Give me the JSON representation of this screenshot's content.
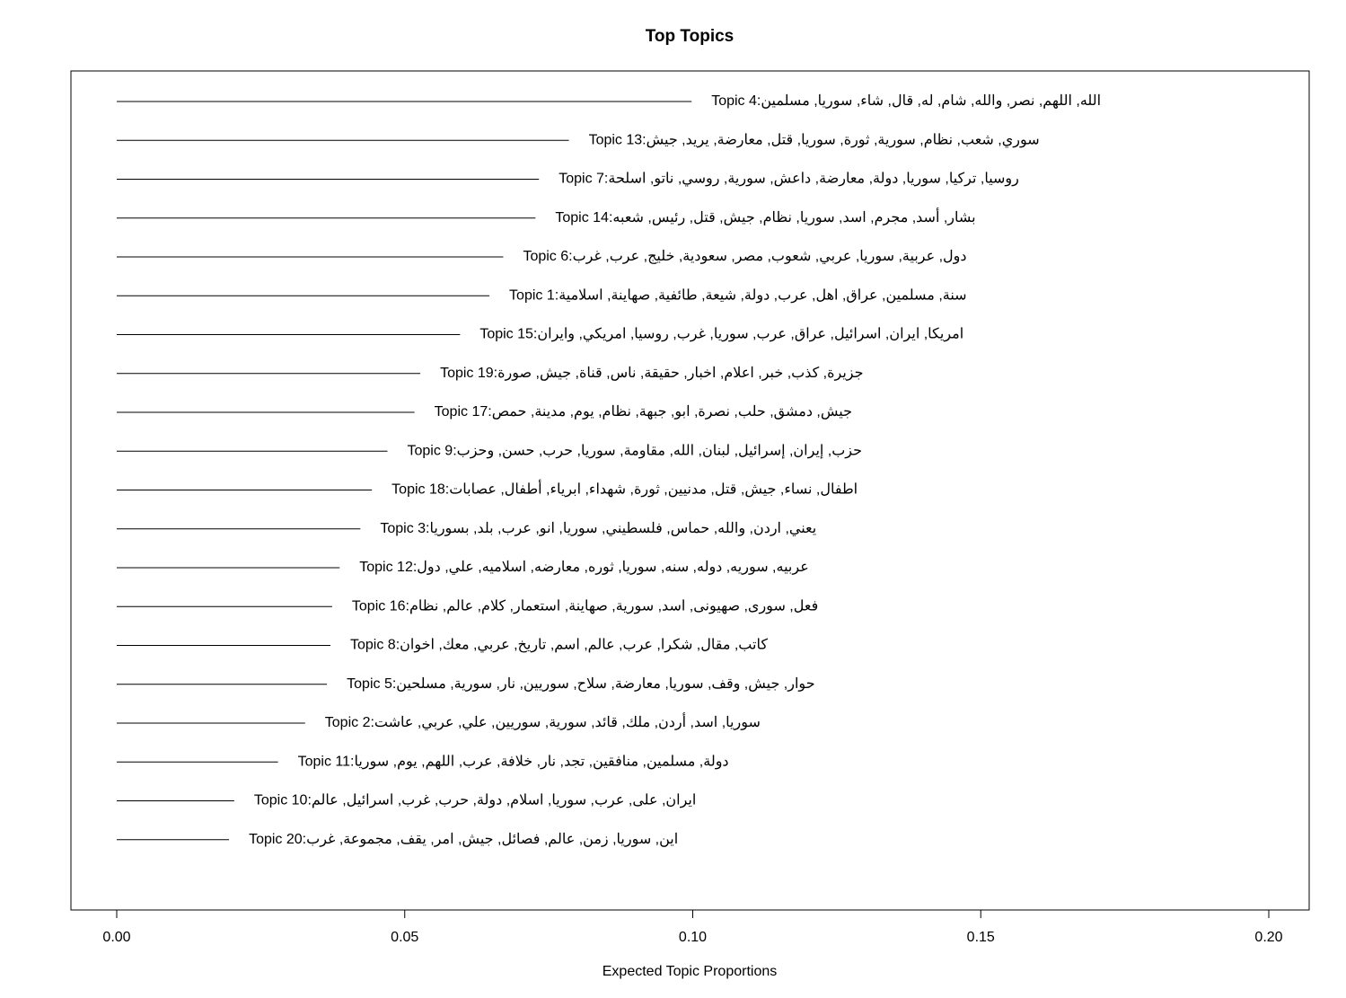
{
  "chart_data": {
    "type": "bar",
    "orientation": "horizontal",
    "title": "Top Topics",
    "xlabel": "Expected Topic Proportions",
    "ylabel": "",
    "xlim": [
      0,
      0.2
    ],
    "x_ticks": [
      "0.00",
      "0.05",
      "0.10",
      "0.15",
      "0.20"
    ],
    "grid": false,
    "bar_color": "#000000",
    "items": [
      {
        "topic": "Topic 4",
        "terms": "الله, اللهم, نصر, والله, شام, له, قال, شاء, سوريا, مسلمين",
        "value": 0.0998
      },
      {
        "topic": "Topic 13",
        "terms": "سوري, شعب, نظام, سورية, ثورة, سوريا, قتل, معارضة, يريد, جيش",
        "value": 0.0785
      },
      {
        "topic": "Topic 7",
        "terms": "روسيا, تركيا, سوريا, دولة, معارضة, داعش, سورية, روسي, ناتو, اسلحة",
        "value": 0.0733
      },
      {
        "topic": "Topic 14",
        "terms": "بشار, أسد, مجرم, اسد, سوريا, نظام, جيش, قتل, رئيس, شعبه",
        "value": 0.0727
      },
      {
        "topic": "Topic 6",
        "terms": "دول, عربية, سوريا, عربي, شعوب, مصر, سعودية, خليج, عرب, غرب",
        "value": 0.0671
      },
      {
        "topic": "Topic 1",
        "terms": "سنة, مسلمين, عراق, اهل, عرب, دولة, شيعة, طائفية, صهاينة, اسلامية",
        "value": 0.0647
      },
      {
        "topic": "Topic 15",
        "terms": "امريكا, ايران, اسرائيل, عراق, عرب, سوريا, غرب, روسيا, امريكي, وايران",
        "value": 0.0596
      },
      {
        "topic": "Topic 19",
        "terms": "جزيرة, كذب, خبر, اعلام, اخبار, حقيقة, ناس, قناة, جيش, صورة",
        "value": 0.0527
      },
      {
        "topic": "Topic 17",
        "terms": "جيش, دمشق, حلب, نصرة, ابو, جبهة, نظام, يوم, مدينة, حمص",
        "value": 0.0517
      },
      {
        "topic": "Topic 9",
        "terms": "حزب, إيران, إسرائيل, لبنان, الله, مقاومة, سوريا, حرب, حسن, وحزب",
        "value": 0.047
      },
      {
        "topic": "Topic 18",
        "terms": "اطفال, نساء, جيش, قتل, مدنيين, ثورة, شهداء, ابرياء, أطفال, عصابات",
        "value": 0.0443
      },
      {
        "topic": "Topic 3",
        "terms": "يعني, اردن, والله, حماس, فلسطيني, سوريا, انو, عرب, بلد, بسوريا",
        "value": 0.0423
      },
      {
        "topic": "Topic 12",
        "terms": "عربيه, سوريه, دوله, سنه, سوريا, ثوره, معارضه, اسلاميه, علي, دول",
        "value": 0.0387
      },
      {
        "topic": "Topic 16",
        "terms": "فعل, سورى, صهيونى, اسد, سورية, صهاينة, استعمار, كلام, عالم, نظام",
        "value": 0.0374
      },
      {
        "topic": "Topic 8",
        "terms": "كاتب, مقال, شكرا, عرب, عالم, اسم, تاريخ, عربي, معك, اخوان",
        "value": 0.0371
      },
      {
        "topic": "Topic 5",
        "terms": "حوار, جيش, وقف, سوريا, معارضة, سلاح, سوريين, نار, سورية, مسلحين",
        "value": 0.0365
      },
      {
        "topic": "Topic 2",
        "terms": "سوريا, اسد, أردن, ملك, قائد, سورية, سوريين, علي, عربي, عاشت",
        "value": 0.0327
      },
      {
        "topic": "Topic 11",
        "terms": "دولة, مسلمين, منافقين, تجد, نار, خلافة, عرب, اللهم, يوم, سوريا",
        "value": 0.028
      },
      {
        "topic": "Topic 10",
        "terms": "ايران, على, عرب, سوريا, اسلام, دولة, حرب, غرب, اسرائيل, عالم",
        "value": 0.0204
      },
      {
        "topic": "Topic 20",
        "terms": "اين, سوريا, زمن, عالم, فصائل, جيش, امر, يقف, مجموعة, غرب",
        "value": 0.0195
      }
    ]
  }
}
